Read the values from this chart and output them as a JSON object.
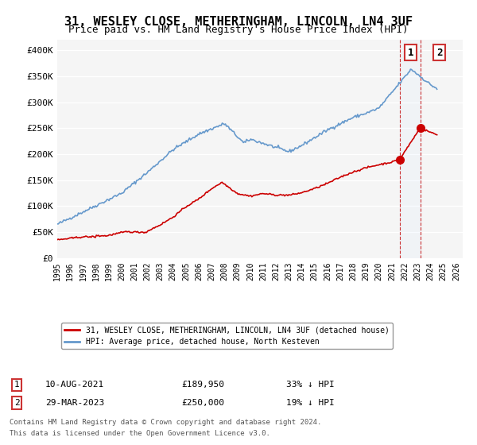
{
  "title": "31, WESLEY CLOSE, METHERINGHAM, LINCOLN, LN4 3UF",
  "subtitle": "Price paid vs. HM Land Registry's House Price Index (HPI)",
  "title_fontsize": 11,
  "subtitle_fontsize": 9,
  "ylabel_ticks": [
    "£0",
    "£50K",
    "£100K",
    "£150K",
    "£200K",
    "£250K",
    "£300K",
    "£350K",
    "£400K"
  ],
  "ytick_values": [
    0,
    50000,
    100000,
    150000,
    200000,
    250000,
    300000,
    350000,
    400000
  ],
  "ylim": [
    0,
    420000
  ],
  "xlim_start": 1995.0,
  "xlim_end": 2026.5,
  "xtick_years": [
    1995,
    1996,
    1997,
    1998,
    1999,
    2000,
    2001,
    2002,
    2003,
    2004,
    2005,
    2006,
    2007,
    2008,
    2009,
    2010,
    2011,
    2012,
    2013,
    2014,
    2015,
    2016,
    2017,
    2018,
    2019,
    2020,
    2021,
    2022,
    2023,
    2024,
    2025,
    2026
  ],
  "hpi_color": "#6699cc",
  "price_color": "#cc0000",
  "legend_label_price": "31, WESLEY CLOSE, METHERINGHAM, LINCOLN, LN4 3UF (detached house)",
  "legend_label_hpi": "HPI: Average price, detached house, North Kesteven",
  "point1_label": "1",
  "point1_date": "10-AUG-2021",
  "point1_price": "£189,950",
  "point1_pct": "33% ↓ HPI",
  "point2_label": "2",
  "point2_date": "29-MAR-2023",
  "point2_price": "£250,000",
  "point2_pct": "19% ↓ HPI",
  "footnote1": "Contains HM Land Registry data © Crown copyright and database right 2024.",
  "footnote2": "This data is licensed under the Open Government Licence v3.0.",
  "bg_color": "#ffffff",
  "plot_bg_color": "#f5f5f5",
  "grid_color": "#ffffff",
  "annotation_area_color": "#ddeeff"
}
